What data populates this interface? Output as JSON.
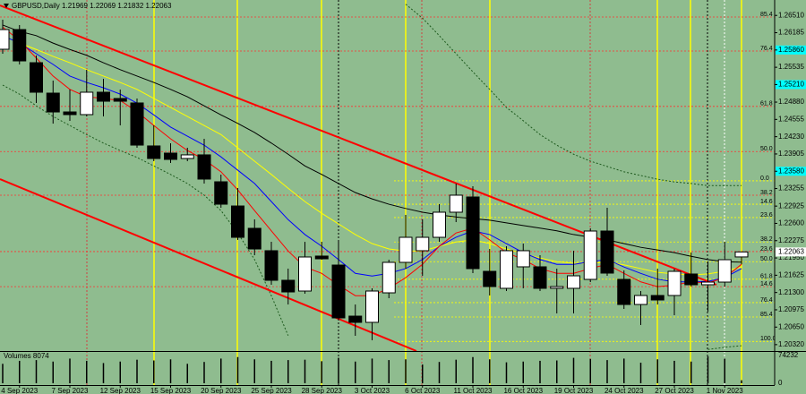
{
  "chart_data": {
    "type": "candlestick",
    "symbol": "GBPUSD,Daily",
    "categories": [
      null,
      "4 Sep 2023",
      null,
      null,
      "7 Sep 2023",
      null,
      null,
      "12 Sep 2023",
      null,
      null,
      "15 Sep 2023",
      null,
      null,
      "20 Sep 2023",
      null,
      null,
      "25 Sep 2023",
      null,
      null,
      "28 Sep 2023",
      null,
      null,
      "3 Oct 2023",
      null,
      null,
      "6 Oct 2023",
      null,
      null,
      "11 Oct 2023",
      null,
      null,
      "16 Oct 2023",
      null,
      null,
      "19 Oct 2023",
      null,
      null,
      "24 Oct 2023",
      null,
      null,
      "27 Oct 2023",
      null,
      null,
      "1 Nov 2023",
      null
    ],
    "open": [
      1.25874,
      1.26244,
      1.25621,
      1.25049,
      1.24695,
      1.24645,
      1.25066,
      1.24948,
      1.24864,
      1.24056,
      1.23921,
      1.2382,
      1.23888,
      1.23382,
      1.22927,
      1.22507,
      1.22086,
      1.2153,
      1.21328,
      1.21985,
      1.21816,
      1.20856,
      1.20739,
      1.21294,
      1.21867,
      1.22086,
      1.22338,
      1.2281,
      1.23096,
      1.21698,
      1.21379,
      1.21783,
      1.21783,
      1.21379,
      1.21379,
      1.21547,
      1.22456,
      1.21547,
      1.21075,
      1.21244,
      1.21244,
      1.21648,
      1.21446,
      1.21496,
      1.21969
    ],
    "high": [
      1.2643,
      1.26329,
      1.25756,
      1.25285,
      1.25116,
      1.25487,
      1.25318,
      1.25116,
      1.24948,
      1.24443,
      1.24106,
      1.24022,
      1.2419,
      1.23517,
      1.23264,
      1.22675,
      1.22254,
      1.21749,
      1.22254,
      1.22254,
      1.22288,
      1.21075,
      1.21379,
      1.21917,
      1.22759,
      1.22675,
      1.22961,
      1.23348,
      1.23298,
      1.22119,
      1.2217,
      1.2222,
      1.22001,
      1.21749,
      1.22086,
      1.22507,
      1.22894,
      1.21715,
      1.21328,
      1.21749,
      1.21749,
      1.22052,
      1.21884,
      1.22254,
      1.22069
    ],
    "low": [
      1.2579,
      1.25588,
      1.24864,
      1.24476,
      1.24527,
      1.24611,
      1.24611,
      1.24443,
      1.24022,
      1.23769,
      1.23736,
      1.23769,
      1.23348,
      1.22894,
      1.22288,
      1.22001,
      1.21446,
      1.21075,
      1.21277,
      1.21917,
      1.20772,
      1.20486,
      1.20402,
      1.21193,
      1.21749,
      1.21614,
      1.22254,
      1.22624,
      1.21665,
      1.21244,
      1.21328,
      1.21379,
      1.21328,
      1.20907,
      1.20907,
      1.21496,
      1.21614,
      1.20991,
      1.20688,
      1.21075,
      1.20873,
      1.21412,
      1.20941,
      1.21412,
      1.21832
    ],
    "close": [
      1.26244,
      1.25655,
      1.25066,
      1.24695,
      1.24645,
      1.25066,
      1.24897,
      1.24897,
      1.24072,
      1.2382,
      1.23803,
      1.23888,
      1.23433,
      1.22961,
      1.22338,
      1.22119,
      1.2153,
      1.21311,
      1.21968,
      1.21934,
      1.20823,
      1.20739,
      1.21328,
      1.21867,
      1.22338,
      1.22338,
      1.2281,
      1.2313,
      1.21749,
      1.21412,
      1.22086,
      1.22086,
      1.21379,
      1.21412,
      1.21614,
      1.22456,
      1.21665,
      1.21075,
      1.21244,
      1.2116,
      1.21698,
      1.21446,
      1.21496,
      1.21917,
      1.22063
    ],
    "up_color": "#ffffff",
    "down_color": "#000000",
    "ylim": [
      1.202,
      1.268
    ],
    "yticks": [
      {
        "value": 1.2651,
        "label": "1.26510"
      },
      1.26185,
      {
        "value": 1.2586,
        "label": "1.25860"
      },
      1.25535,
      {
        "value": 1.2521,
        "label": "1.25210"
      },
      {
        "value": 1.2488,
        "label": "1.24880"
      },
      1.24555,
      {
        "value": 1.2423,
        "label": "1.24230"
      },
      1.23905,
      {
        "value": 1.2358,
        "label": "1.23580"
      },
      1.23255,
      1.22925,
      {
        "value": 1.226,
        "label": "1.22600"
      },
      1.22275,
      {
        "value": 1.2195,
        "label": "1.21950"
      },
      1.21625,
      {
        "value": 1.213,
        "label": "1.21300"
      },
      1.20975,
      {
        "value": 1.2065,
        "label": "1.20650"
      },
      {
        "value": 1.2032,
        "label": "1.20320"
      }
    ],
    "price_markers": [
      1.2586,
      1.2521,
      1.2358
    ],
    "marker_color": "#00ffff",
    "indicators": [
      {
        "color": "#000000",
        "style": "solid",
        "values": [
          1.2633,
          1.2621,
          1.2613,
          1.2599,
          1.2587,
          1.2576,
          1.2562,
          1.2549,
          1.2537,
          1.2525,
          1.2512,
          1.2498,
          1.2481,
          1.2464,
          1.2448,
          1.2431,
          1.2411,
          1.239,
          1.2368,
          1.2352,
          1.2335,
          1.2318,
          1.2306,
          1.2296,
          1.2288,
          1.2281,
          1.2276,
          1.2272,
          1.2269,
          1.2266,
          1.2261,
          1.2256,
          1.2251,
          1.2246,
          1.2239,
          1.2234,
          1.2229,
          1.2222,
          1.2215,
          1.221,
          1.2205,
          1.2198,
          1.2192,
          1.2188,
          1.2187
        ]
      },
      {
        "color": "#ffff00",
        "style": "solid",
        "values": [
          1.2613,
          1.2599,
          1.2587,
          1.2574,
          1.2562,
          1.2549,
          1.2537,
          1.2525,
          1.2512,
          1.2495,
          1.2478,
          1.2461,
          1.2444,
          1.2427,
          1.2402,
          1.2377,
          1.2352,
          1.2326,
          1.2301,
          1.2279,
          1.2259,
          1.2239,
          1.2222,
          1.2212,
          1.2208,
          1.2208,
          1.2217,
          1.2225,
          1.2229,
          1.2222,
          1.2212,
          1.2203,
          1.2195,
          1.2188,
          1.2185,
          1.2185,
          1.2187,
          1.2182,
          1.2175,
          1.2168,
          1.2165,
          1.2163,
          1.2165,
          1.217,
          1.2178
        ]
      },
      {
        "color": "#0000ff",
        "style": "solid",
        "values": [
          1.2613,
          1.2599,
          1.2579,
          1.2559,
          1.2537,
          1.2525,
          1.2515,
          1.2503,
          1.2486,
          1.2464,
          1.2441,
          1.2424,
          1.2407,
          1.2385,
          1.236,
          1.2335,
          1.2301,
          1.2267,
          1.2239,
          1.2217,
          1.2192,
          1.2166,
          1.2161,
          1.2166,
          1.2175,
          1.2192,
          1.2217,
          1.2234,
          1.2246,
          1.2239,
          1.2222,
          1.2205,
          1.2192,
          1.2183,
          1.2183,
          1.2188,
          1.2192,
          1.2178,
          1.2166,
          1.2155,
          1.215,
          1.215,
          1.2151,
          1.2158,
          1.2175
        ]
      },
      {
        "color": "#ff0000",
        "style": "solid",
        "values": [
          1.2629,
          1.2604,
          1.2571,
          1.2537,
          1.2512,
          1.2498,
          1.2495,
          1.2491,
          1.247,
          1.2444,
          1.2419,
          1.2397,
          1.238,
          1.2357,
          1.2323,
          1.2284,
          1.2246,
          1.2208,
          1.2178,
          1.2166,
          1.2144,
          1.2124,
          1.2124,
          1.2138,
          1.2158,
          1.2183,
          1.2217,
          1.2242,
          1.2251,
          1.2229,
          1.2205,
          1.2192,
          1.2175,
          1.2166,
          1.2166,
          1.2175,
          1.2183,
          1.2166,
          1.215,
          1.2141,
          1.2144,
          1.215,
          1.2148,
          1.2158,
          1.2183
        ]
      },
      {
        "color": "#1e5a1e",
        "style": "dashed",
        "values": [
          null,
          null,
          null,
          null,
          null,
          null,
          null,
          null,
          null,
          null,
          null,
          null,
          null,
          null,
          null,
          null,
          null,
          null,
          null,
          null,
          null,
          null,
          null,
          null,
          1.2672,
          1.2646,
          1.2613,
          1.2579,
          1.2545,
          1.2512,
          1.2478,
          1.2453,
          1.2427,
          1.2407,
          1.239,
          1.2377,
          1.2367,
          1.2357,
          1.235,
          1.2343,
          1.2338,
          1.2335,
          1.2331,
          1.2331,
          1.2331
        ]
      },
      {
        "color": "#1e5a1e",
        "style": "dashed",
        "values": [
          1.252,
          1.2503,
          1.2481,
          1.2461,
          1.2444,
          1.2427,
          1.2411,
          1.2397,
          1.2384,
          1.2368,
          1.2352,
          1.2335,
          1.2313,
          1.2284,
          1.2242,
          1.2192,
          1.2124,
          1.2049,
          null,
          null,
          null,
          null,
          null,
          null,
          null,
          null,
          null,
          null,
          null,
          null,
          null,
          null,
          null,
          null,
          null,
          null,
          null,
          null,
          null,
          null,
          null,
          null,
          1.2023,
          1.2027,
          1.203
        ]
      }
    ],
    "fib_levels": [
      {
        "color": "#ff3030",
        "levels": [
          {
            "label": "85.4",
            "price": 1.2648
          },
          {
            "label": "76.4",
            "price": 1.2584
          },
          {
            "label": "61.8",
            "price": 1.248
          },
          {
            "label": "50.0",
            "price": 1.2395
          },
          {
            "label": "38.2",
            "price": 1.2313
          },
          {
            "label": "23.6",
            "price": 1.2207
          },
          {
            "label": "14.6",
            "price": 1.2141
          }
        ]
      },
      {
        "color": "#ffff00",
        "levels": [
          {
            "label": "0.0",
            "price": 1.234
          },
          {
            "label": "14.6",
            "price": 1.2296
          },
          {
            "label": "23.6",
            "price": 1.2271
          },
          {
            "label": "38.2",
            "price": 1.2225
          },
          {
            "label": "50.0",
            "price": 1.2188
          },
          {
            "label": "61.8",
            "price": 1.2155
          },
          {
            "label": "76.4",
            "price": 1.2111
          },
          {
            "label": "85.4",
            "price": 1.2084
          },
          {
            "label": "100.0",
            "price": 1.2038
          }
        ]
      }
    ],
    "volume": {
      "label": "Volumes",
      "color": "#000000",
      "values": [
        52000,
        60000,
        62000,
        58000,
        66000,
        60000,
        54000,
        58000,
        63000,
        61000,
        64000,
        52000,
        57000,
        66000,
        70000,
        64000,
        60000,
        62000,
        63000,
        59000,
        68000,
        58000,
        66000,
        62000,
        64000,
        50000,
        57000,
        63000,
        70000,
        64000,
        56000,
        58000,
        60000,
        61000,
        68000,
        65000,
        62000,
        66000,
        55000,
        64000,
        60000,
        58000,
        72000,
        66000,
        8074
      ],
      "ylim": [
        0,
        74232
      ],
      "yticks": [
        74232,
        0
      ]
    }
  }
}
